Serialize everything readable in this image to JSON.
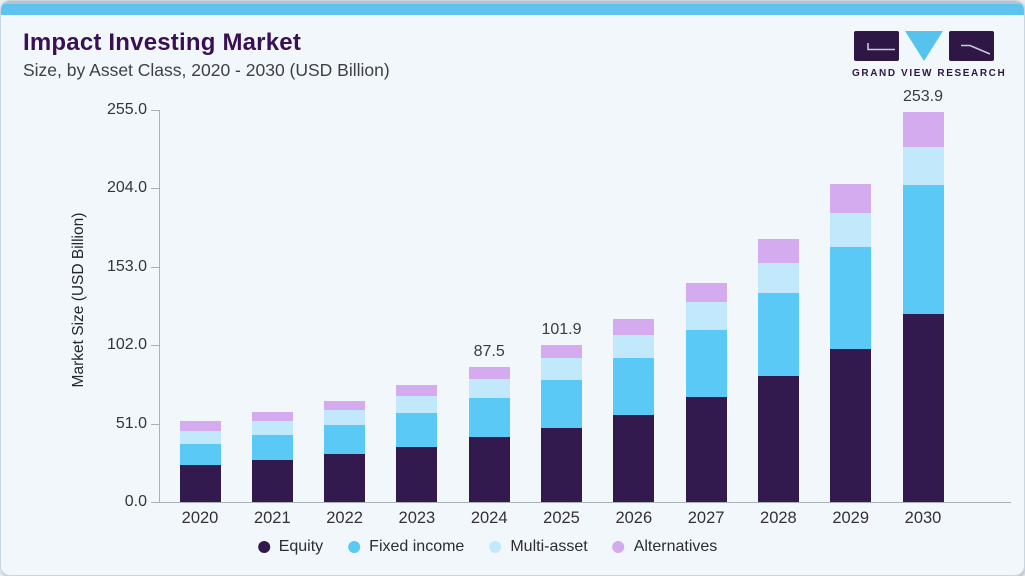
{
  "header": {
    "title": "Impact Investing Market",
    "subtitle": "Size, by Asset Class, 2020 - 2030 (USD Billion)"
  },
  "brand": {
    "name": "GRAND VIEW RESEARCH",
    "rect_color": "#2e1745",
    "triangle_color": "#55c3ee"
  },
  "theme": {
    "accent_bar": "#5fc3f0",
    "card_background": "#f2f7fb",
    "axis_color": "#aab1b8",
    "title_color": "#3a1055"
  },
  "chart_data": {
    "type": "bar",
    "stacked": true,
    "title": "Impact Investing Market Size, by Asset Class, 2020 - 2030 (USD Billion)",
    "categories": [
      "2020",
      "2021",
      "2022",
      "2023",
      "2024",
      "2025",
      "2026",
      "2027",
      "2028",
      "2029",
      "2030"
    ],
    "series": [
      {
        "name": "Equity",
        "color": "#321a4f",
        "values": [
          23.9,
          27.3,
          31.3,
          35.8,
          42.2,
          48.4,
          56.4,
          68.1,
          81.8,
          99.5,
          122.1
        ]
      },
      {
        "name": "Fixed income",
        "color": "#5bc9f5",
        "values": [
          13.9,
          16.4,
          18.8,
          22.2,
          25.7,
          31.0,
          37.5,
          43.9,
          54.3,
          66.4,
          83.9
        ]
      },
      {
        "name": "Multi-asset",
        "color": "#c2e9fb",
        "values": [
          8.5,
          8.7,
          9.6,
          10.8,
          12.2,
          14.2,
          14.6,
          18.0,
          19.5,
          22.4,
          25.1
        ]
      },
      {
        "name": "Alternatives",
        "color": "#d5abf0",
        "values": [
          6.1,
          6.3,
          6.1,
          7.1,
          7.4,
          8.3,
          10.8,
          12.3,
          15.7,
          18.4,
          22.8
        ]
      }
    ],
    "total_labels": [
      "",
      "",
      "",
      "",
      "87.5",
      "101.9",
      "",
      "",
      "",
      "",
      "253.9"
    ],
    "ylabel": "Market Size (USD Billion)",
    "yticks": [
      255.0,
      204.0,
      153.0,
      102.0,
      51.0,
      0.0
    ],
    "ylim": [
      0,
      255
    ],
    "grid": false,
    "legend_position": "bottom"
  }
}
